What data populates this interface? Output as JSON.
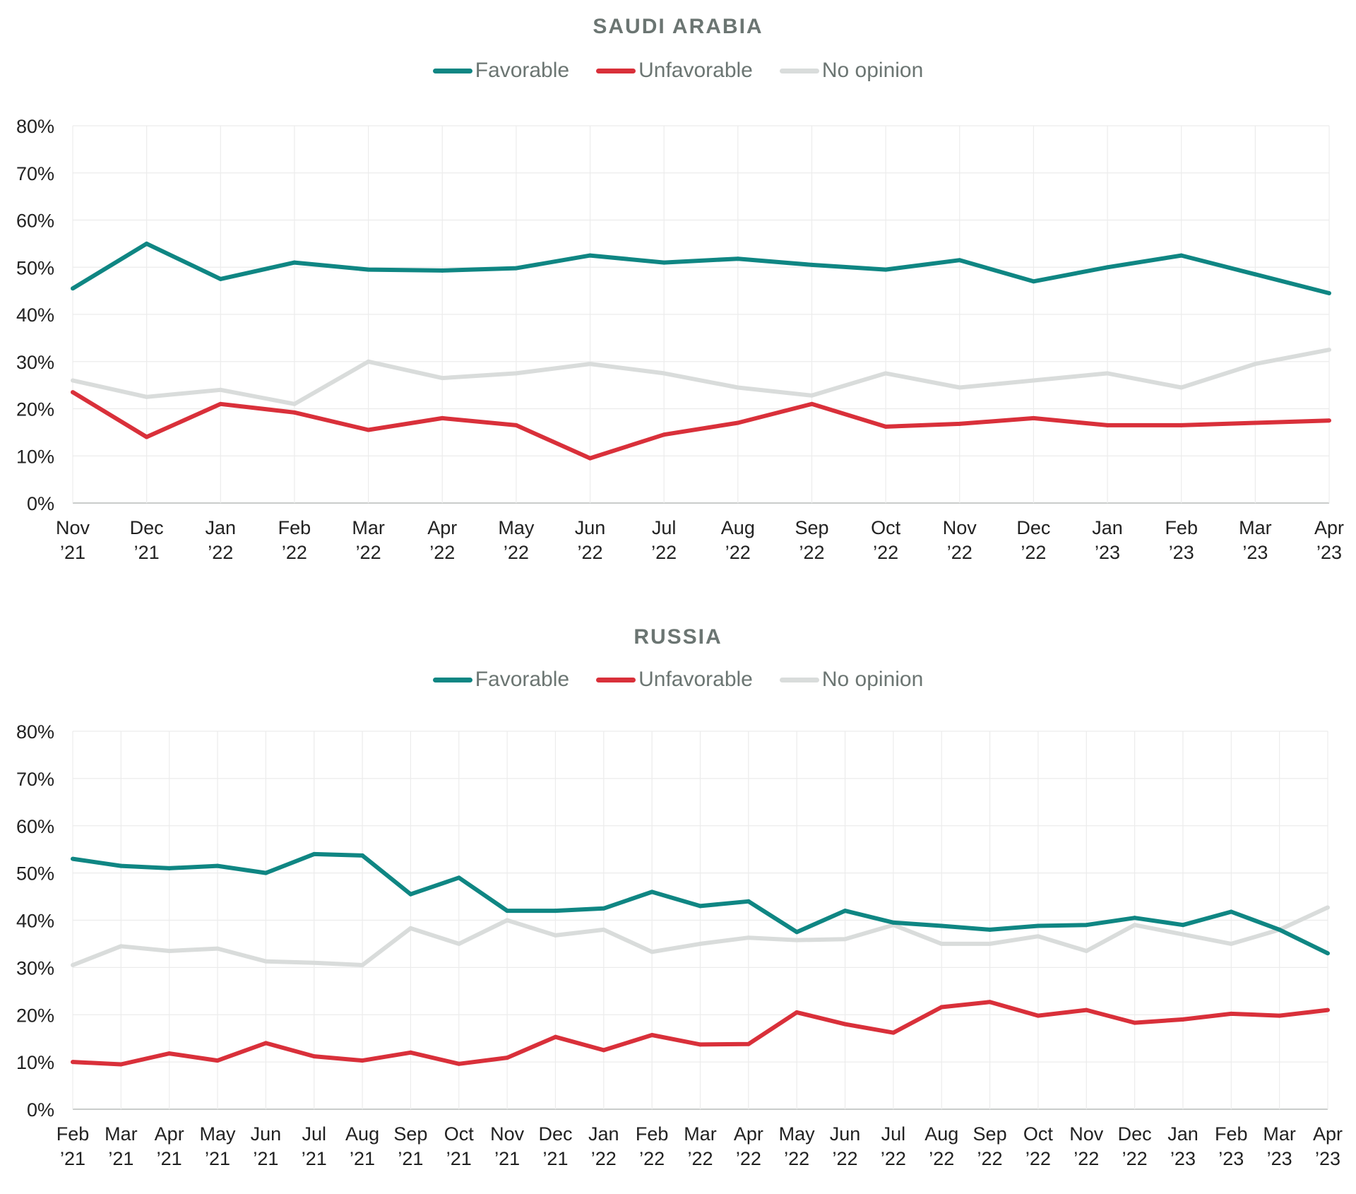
{
  "chart_data": [
    {
      "type": "line",
      "title": "SAUDI ARABIA",
      "xlabel": "",
      "ylabel": "",
      "ylim": [
        0,
        80
      ],
      "yticks": [
        "0%",
        "10%",
        "20%",
        "30%",
        "40%",
        "50%",
        "60%",
        "70%",
        "80%"
      ],
      "grid": true,
      "legend_position": "top-center",
      "categories": [
        [
          "Nov",
          "’21"
        ],
        [
          "Dec",
          "’21"
        ],
        [
          "Jan",
          "’22"
        ],
        [
          "Feb",
          "’22"
        ],
        [
          "Mar",
          "’22"
        ],
        [
          "Apr",
          "’22"
        ],
        [
          "May",
          "’22"
        ],
        [
          "Jun",
          "’22"
        ],
        [
          "Jul",
          "’22"
        ],
        [
          "Aug",
          "’22"
        ],
        [
          "Sep",
          "’22"
        ],
        [
          "Oct",
          "’22"
        ],
        [
          "Nov",
          "’22"
        ],
        [
          "Dec",
          "’22"
        ],
        [
          "Jan",
          "’23"
        ],
        [
          "Feb",
          "’23"
        ],
        [
          "Mar",
          "’23"
        ],
        [
          "Apr",
          "’23"
        ]
      ],
      "series": [
        {
          "name": "Favorable",
          "color": "#0f8683",
          "values": [
            45.5,
            55,
            47.5,
            51,
            49.5,
            49.3,
            49.8,
            52.5,
            51,
            51.8,
            50.5,
            49.5,
            51.5,
            47,
            50,
            52.5,
            48.5,
            44.5
          ]
        },
        {
          "name": "Unfavorable",
          "color": "#d9303a",
          "values": [
            23.5,
            14,
            21,
            19.2,
            15.5,
            18,
            16.5,
            9.5,
            14.5,
            17,
            21,
            16.2,
            16.8,
            18,
            16.5,
            16.5,
            17,
            17.5
          ]
        },
        {
          "name": "No opinion",
          "color": "#d9dcdb",
          "values": [
            26,
            22.5,
            24,
            21,
            30,
            26.5,
            27.5,
            29.5,
            27.5,
            24.5,
            22.8,
            27.5,
            24.5,
            26,
            27.5,
            24.5,
            29.5,
            32.5
          ]
        }
      ]
    },
    {
      "type": "line",
      "title": "RUSSIA",
      "xlabel": "",
      "ylabel": "",
      "ylim": [
        0,
        80
      ],
      "yticks": [
        "0%",
        "10%",
        "20%",
        "30%",
        "40%",
        "50%",
        "60%",
        "70%",
        "80%"
      ],
      "grid": true,
      "legend_position": "top-center",
      "categories": [
        [
          "Feb",
          "’21"
        ],
        [
          "Mar",
          "’21"
        ],
        [
          "Apr",
          "’21"
        ],
        [
          "May",
          "’21"
        ],
        [
          "Jun",
          "’21"
        ],
        [
          "Jul",
          "’21"
        ],
        [
          "Aug",
          "’21"
        ],
        [
          "Sep",
          "’21"
        ],
        [
          "Oct",
          "’21"
        ],
        [
          "Nov",
          "’21"
        ],
        [
          "Dec",
          "’21"
        ],
        [
          "Jan",
          "’22"
        ],
        [
          "Feb",
          "’22"
        ],
        [
          "Mar",
          "’22"
        ],
        [
          "Apr",
          "’22"
        ],
        [
          "May",
          "’22"
        ],
        [
          "Jun",
          "’22"
        ],
        [
          "Jul",
          "’22"
        ],
        [
          "Aug",
          "’22"
        ],
        [
          "Sep",
          "’22"
        ],
        [
          "Oct",
          "’22"
        ],
        [
          "Nov",
          "’22"
        ],
        [
          "Dec",
          "’22"
        ],
        [
          "Jan",
          "’23"
        ],
        [
          "Feb",
          "’23"
        ],
        [
          "Mar",
          "’23"
        ],
        [
          "Apr",
          "’23"
        ]
      ],
      "series": [
        {
          "name": "Favorable",
          "color": "#0f8683",
          "values": [
            53,
            51.5,
            51,
            51.5,
            50,
            54,
            53.7,
            45.5,
            49,
            42,
            42,
            42.5,
            46,
            43,
            44,
            37.5,
            42,
            39.5,
            38.8,
            38,
            38.8,
            39,
            40.5,
            39,
            41.8,
            38,
            33
          ]
        },
        {
          "name": "Unfavorable",
          "color": "#d9303a",
          "values": [
            10,
            9.5,
            11.8,
            10.3,
            14,
            11.2,
            10.3,
            12,
            9.6,
            10.9,
            15.3,
            12.5,
            15.7,
            13.7,
            13.8,
            20.5,
            18,
            16.2,
            21.6,
            22.7,
            19.8,
            21,
            18.3,
            19,
            20.2,
            19.8,
            21
          ]
        },
        {
          "name": "No opinion",
          "color": "#d9dcdb",
          "values": [
            30.5,
            34.5,
            33.5,
            34,
            31.3,
            31,
            30.5,
            38.3,
            35,
            40,
            36.8,
            38,
            33.3,
            35,
            36.3,
            35.8,
            36,
            39,
            35,
            35,
            36.6,
            33.5,
            39,
            37,
            35,
            38,
            42.7
          ]
        }
      ]
    }
  ]
}
